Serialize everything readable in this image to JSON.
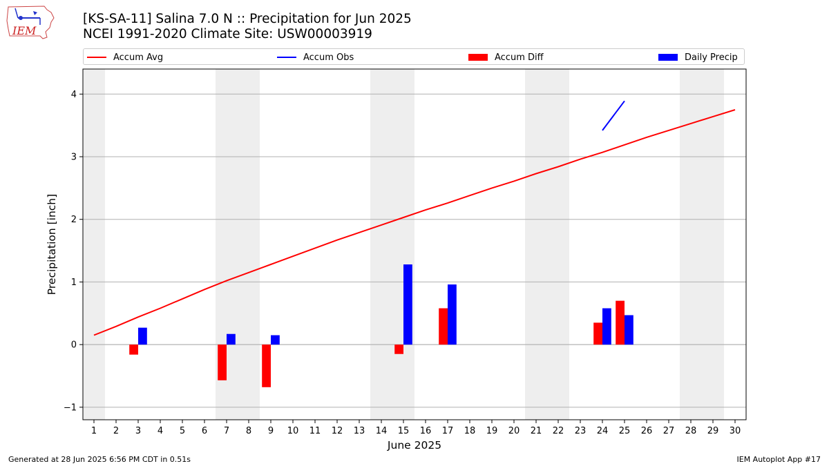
{
  "header": {
    "title_line1": "[KS-SA-11] Salina 7.0 N :: Precipitation for Jun 2025",
    "title_line2": "NCEI 1991-2020 Climate Site: USW00003919"
  },
  "logo": {
    "text": "IEM",
    "icon": "iem-iowa-logo-icon"
  },
  "legend": {
    "items": [
      {
        "label": "Accum Avg",
        "kind": "line",
        "color": "#ff0000"
      },
      {
        "label": "Accum Obs",
        "kind": "line",
        "color": "#0000ff"
      },
      {
        "label": "Accum Diff",
        "kind": "patch",
        "color": "#ff0000"
      },
      {
        "label": "Daily Precip",
        "kind": "patch",
        "color": "#0000ff"
      }
    ]
  },
  "footer": {
    "left": "Generated at 28 Jun 2025 6:56 PM CDT in 0.51s",
    "right": "IEM Autoplot App #17"
  },
  "chart_data": {
    "type": "bar",
    "xlabel": "June 2025",
    "ylabel": "Precipitation [inch]",
    "x": [
      1,
      2,
      3,
      4,
      5,
      6,
      7,
      8,
      9,
      10,
      11,
      12,
      13,
      14,
      15,
      16,
      17,
      18,
      19,
      20,
      21,
      22,
      23,
      24,
      25,
      26,
      27,
      28,
      29,
      30
    ],
    "xlim": [
      0.5,
      30.5
    ],
    "ylim": [
      -1.2,
      4.4
    ],
    "yticks": [
      -1,
      0,
      1,
      2,
      3,
      4
    ],
    "grid": "horizontal",
    "weekend_shading": [
      [
        0.5,
        1.5
      ],
      [
        6.5,
        8.5
      ],
      [
        13.5,
        15.5
      ],
      [
        20.5,
        22.5
      ],
      [
        27.5,
        29.5
      ]
    ],
    "colors": {
      "avg": "#ff0000",
      "obs": "#0000ff",
      "diff": "#ff0000",
      "daily": "#0000ff",
      "shade": "#eeeeee",
      "grid": "#b0b0b0"
    },
    "series": [
      {
        "name": "Accum Avg",
        "kind": "line",
        "values": [
          0.15,
          0.29,
          0.44,
          0.58,
          0.73,
          0.88,
          1.02,
          1.15,
          1.28,
          1.41,
          1.54,
          1.67,
          1.79,
          1.91,
          2.03,
          2.15,
          2.26,
          2.38,
          2.5,
          2.61,
          2.73,
          2.84,
          2.96,
          3.07,
          3.19,
          3.31,
          3.42,
          3.53,
          3.64,
          3.75
        ]
      },
      {
        "name": "Accum Obs",
        "kind": "line",
        "values": [
          null,
          null,
          null,
          null,
          null,
          null,
          null,
          null,
          null,
          null,
          null,
          null,
          null,
          null,
          null,
          null,
          null,
          null,
          null,
          null,
          null,
          null,
          null,
          3.42,
          3.89,
          null,
          null,
          null,
          null,
          null
        ]
      },
      {
        "name": "Accum Diff",
        "kind": "bar",
        "values": [
          null,
          null,
          -0.16,
          null,
          null,
          null,
          -0.57,
          null,
          -0.68,
          null,
          null,
          null,
          null,
          null,
          -0.15,
          null,
          0.58,
          null,
          null,
          null,
          null,
          null,
          null,
          0.35,
          0.7,
          null,
          null,
          null,
          null,
          null
        ]
      },
      {
        "name": "Daily Precip",
        "kind": "bar",
        "values": [
          null,
          null,
          0.27,
          null,
          null,
          null,
          0.17,
          null,
          0.15,
          null,
          null,
          null,
          null,
          null,
          1.28,
          null,
          0.96,
          null,
          null,
          null,
          null,
          null,
          null,
          0.58,
          0.47,
          null,
          null,
          null,
          null,
          null
        ]
      }
    ]
  }
}
